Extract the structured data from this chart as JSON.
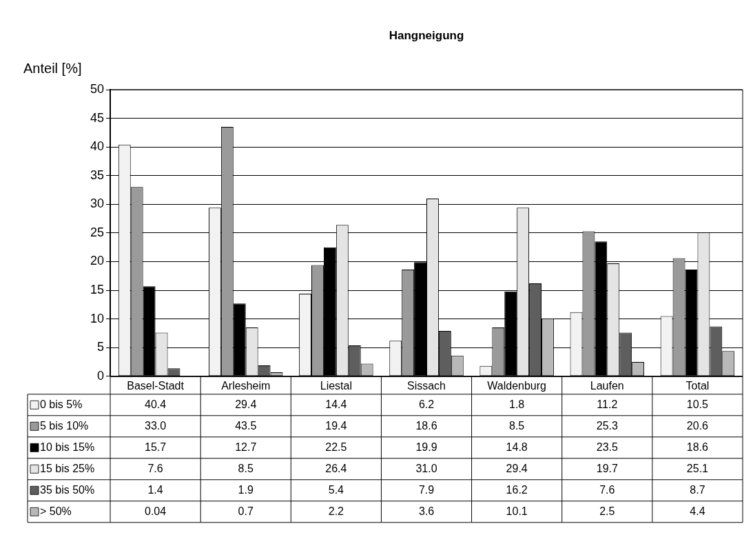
{
  "chart_data": {
    "type": "bar",
    "title": "Hangneigung",
    "ylabel": "Anteil [%]",
    "categories": [
      "Basel-Stadt",
      "Arlesheim",
      "Liestal",
      "Sissach",
      "Waldenburg",
      "Laufen",
      "Total"
    ],
    "series": [
      {
        "name": "0 bis 5%",
        "color": "#f2f2f2",
        "values": [
          40.4,
          29.4,
          14.4,
          6.2,
          1.8,
          11.2,
          10.5
        ],
        "value_labels": [
          "40.4",
          "29.4",
          "14.4",
          "6.2",
          "1.8",
          "11.2",
          "10.5"
        ]
      },
      {
        "name": "5 bis 10%",
        "color": "#9a9a9a",
        "values": [
          33.0,
          43.5,
          19.4,
          18.6,
          8.5,
          25.3,
          20.6
        ],
        "value_labels": [
          "33.0",
          "43.5",
          "19.4",
          "18.6",
          "8.5",
          "25.3",
          "20.6"
        ]
      },
      {
        "name": "10 bis 15%",
        "color": "#000000",
        "values": [
          15.7,
          12.7,
          22.5,
          19.9,
          14.8,
          23.5,
          18.6
        ],
        "value_labels": [
          "15.7",
          "12.7",
          "22.5",
          "19.9",
          "14.8",
          "23.5",
          "18.6"
        ]
      },
      {
        "name": "15 bis 25%",
        "color": "#e4e4e4",
        "values": [
          7.6,
          8.5,
          26.4,
          31.0,
          29.4,
          19.7,
          25.1
        ],
        "value_labels": [
          "7.6",
          "8.5",
          "26.4",
          "31.0",
          "29.4",
          "19.7",
          "25.1"
        ]
      },
      {
        "name": "35 bis 50%",
        "color": "#5e5e5e",
        "values": [
          1.4,
          1.9,
          5.4,
          7.9,
          16.2,
          7.6,
          8.7
        ],
        "value_labels": [
          "1.4",
          "1.9",
          "5.4",
          "7.9",
          "16.2",
          "7.6",
          "8.7"
        ]
      },
      {
        "name": "> 50%",
        "color": "#b8b8b8",
        "values": [
          0.04,
          0.7,
          2.2,
          3.6,
          10.1,
          2.5,
          4.4
        ],
        "value_labels": [
          "0.04",
          "0.7",
          "2.2",
          "3.6",
          "10.1",
          "2.5",
          "4.4"
        ]
      }
    ],
    "ylim": [
      0,
      50
    ],
    "yticks": [
      0,
      5,
      10,
      15,
      20,
      25,
      30,
      35,
      40,
      45,
      50
    ],
    "grid": "y",
    "legend": "bottom",
    "data_labels": true
  }
}
